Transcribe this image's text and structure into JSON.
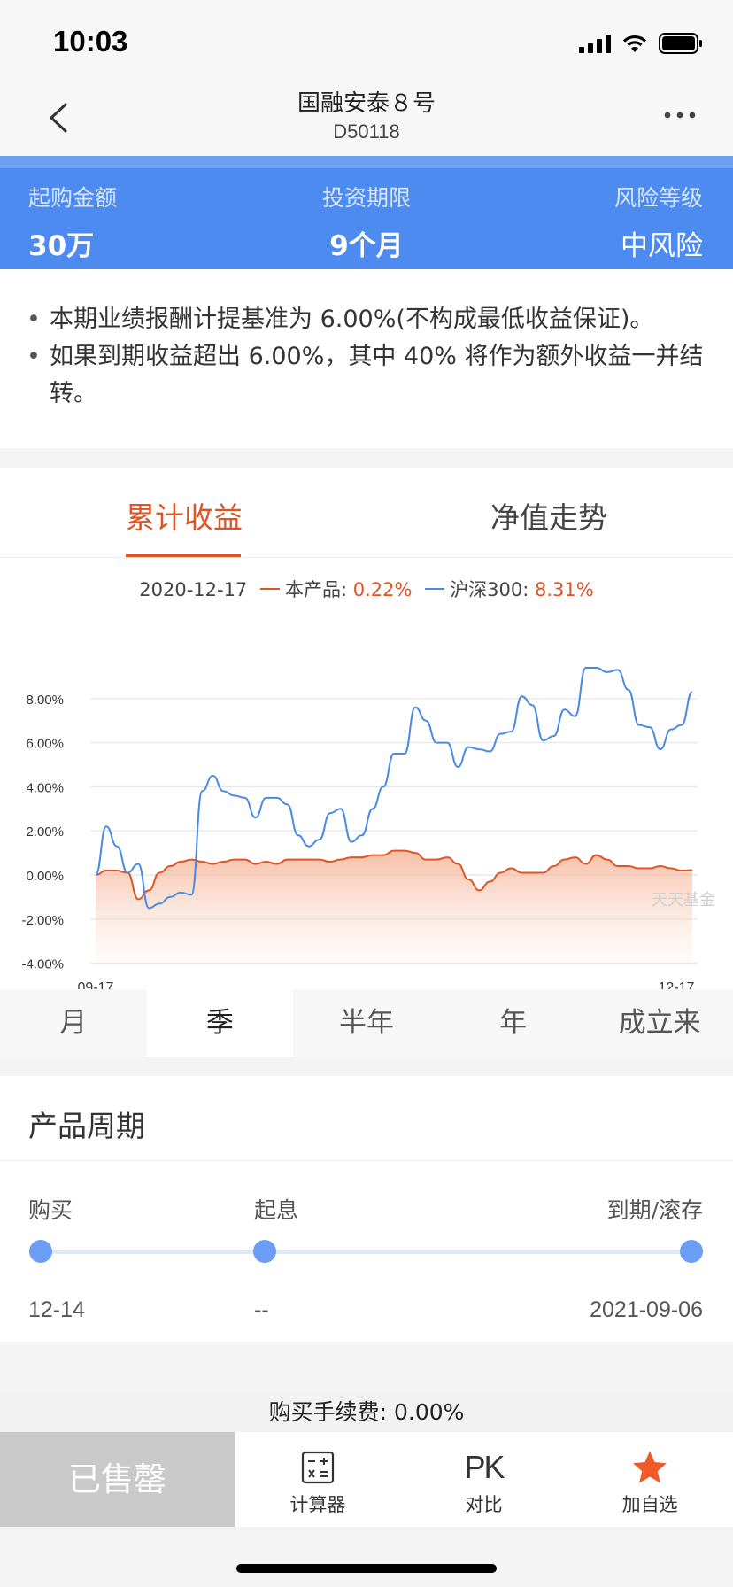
{
  "status": {
    "time": "10:03"
  },
  "nav": {
    "title": "国融安泰８号",
    "code": "D50118"
  },
  "info": {
    "min_purchase_label": "起购金额",
    "min_purchase_value": "30万",
    "term_label": "投资期限",
    "term_value": "9个月",
    "risk_label": "风险等级",
    "risk_value": "中风险"
  },
  "notes": [
    "本期业绩报酬计提基准为 6.00%(不构成最低收益保证)。",
    "如果到期收益超出 6.00%，其中 40% 将作为额外收益一并结转。"
  ],
  "tabs": {
    "cumulative": "累计收益",
    "nav_trend": "净值走势"
  },
  "legend": {
    "date": "2020-12-17",
    "product_label": "本产品:",
    "product_value": "0.22%",
    "index_label": "沪深300:",
    "index_value": "8.31%"
  },
  "chart_data": {
    "type": "line",
    "x_start_label": "09-17",
    "x_end_label": "12-17",
    "ylim": [
      -4,
      9
    ],
    "y_ticks": [
      "8.00%",
      "6.00%",
      "4.00%",
      "2.00%",
      "0.00%",
      "-2.00%",
      "-4.00%"
    ],
    "watermark": "天天基金",
    "colors": {
      "product": "#e05424",
      "index": "#4a8ae6"
    },
    "series": [
      {
        "name": "本产品",
        "values": [
          0,
          0.2,
          0.2,
          0.1,
          -1.1,
          -0.7,
          0.1,
          0.4,
          0.6,
          0.7,
          0.6,
          0.5,
          0.6,
          0.7,
          0.7,
          0.5,
          0.6,
          0.5,
          0.7,
          0.7,
          0.7,
          0.7,
          0.6,
          0.7,
          0.8,
          0.8,
          0.9,
          0.9,
          1.1,
          1.1,
          1.0,
          0.7,
          0.7,
          0.8,
          0.5,
          -0.2,
          -0.7,
          -0.3,
          0.1,
          0.3,
          0.1,
          0.1,
          0.1,
          0.4,
          0.7,
          0.8,
          0.5,
          0.9,
          0.7,
          0.4,
          0.4,
          0.3,
          0.3,
          0.4,
          0.3,
          0.2,
          0.22
        ]
      },
      {
        "name": "沪深300",
        "values": [
          0,
          2.2,
          1.3,
          0.1,
          0.5,
          -1.5,
          -1.3,
          -1.0,
          -0.8,
          -0.9,
          3.8,
          4.5,
          3.8,
          3.6,
          3.5,
          2.6,
          3.5,
          3.5,
          3.2,
          1.8,
          1.3,
          1.6,
          2.8,
          3.0,
          1.5,
          1.8,
          3.0,
          4.0,
          5.5,
          5.5,
          7.6,
          7.0,
          6.0,
          6.0,
          4.9,
          5.8,
          5.7,
          5.6,
          6.4,
          6.5,
          8.1,
          7.7,
          6.1,
          6.3,
          7.5,
          7.2,
          9.4,
          9.4,
          9.2,
          9.3,
          8.4,
          6.8,
          6.7,
          5.7,
          6.6,
          6.8,
          8.31
        ]
      }
    ]
  },
  "periods": [
    "月",
    "季",
    "半年",
    "年",
    "成立来"
  ],
  "selected_period": "季",
  "cycle": {
    "title": "产品周期",
    "buy_label": "购买",
    "interest_label": "起息",
    "maturity_label": "到期/滚存",
    "buy_value": "12-14",
    "interest_value": "--",
    "maturity_value": "2021-09-06"
  },
  "fee": "购买手续费: 0.00%",
  "bottom": {
    "sold_out": "已售罄",
    "calculator": "计算器",
    "pk_glyph": "PK",
    "compare": "对比",
    "favorite": "加自选"
  }
}
